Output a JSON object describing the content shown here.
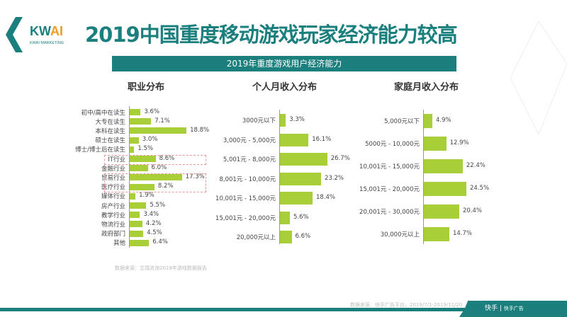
{
  "header": {
    "logo_text": "KWAI",
    "logo_sub": "KWAI MARKETING",
    "title": "2019中国重度移动游戏玩家经济能力较高",
    "banner": "2019年重度游戏用户经济能力"
  },
  "colors": {
    "teal": "#1a7f7d",
    "bar": "#a9cf38",
    "highlight": "#e89a9a",
    "logo_accent": "#f29c1f"
  },
  "chart_data": [
    {
      "type": "bar",
      "orientation": "horizontal",
      "title": "职业分布",
      "categories": [
        "初中/高中在读生",
        "大专在读生",
        "本科在读生",
        "硕士在读生",
        "博士/博士后在读生",
        "IT行业",
        "金融行业",
        "贸易行业",
        "医疗行业",
        "媒体行业",
        "房产行业",
        "教学行业",
        "物流行业",
        "政府部门",
        "其他"
      ],
      "values": [
        3.6,
        7.1,
        18.8,
        3.0,
        1.5,
        8.6,
        6.0,
        17.3,
        8.2,
        1.9,
        5.5,
        3.4,
        4.2,
        4.5,
        6.4
      ],
      "labels": [
        "3.6%",
        "7.1%",
        "18.8%",
        "3.0%",
        "1.5%",
        "8.6%",
        "6.0%",
        "17.3%",
        "8.2%",
        "1.9%",
        "5.5%",
        "3.4%",
        "4.2%",
        "4.5%",
        "6.4%"
      ],
      "unit": "%",
      "highlighted": [
        "IT行业",
        "贸易行业",
        "医疗行业"
      ]
    },
    {
      "type": "bar",
      "orientation": "horizontal",
      "title": "个人月收入分布",
      "categories": [
        "3000元以下",
        "3,000元 - 5,000元",
        "5,001元 - 8,000元",
        "8,001元 - 10,000元",
        "10,001元 - 15,000元",
        "15,001元 - 20,000元",
        "20,000元以上"
      ],
      "values": [
        3.3,
        16.1,
        26.7,
        23.2,
        18.4,
        5.6,
        6.6
      ],
      "labels": [
        "3.3%",
        "16.1%",
        "26.7%",
        "23.2%",
        "18.4%",
        "5.6%",
        "6.6%"
      ],
      "unit": "%"
    },
    {
      "type": "bar",
      "orientation": "horizontal",
      "title": "家庭月收入分布",
      "categories": [
        "5,000元以下",
        "5000元 - 10,000元",
        "10,001元 - 15,000元",
        "15,001元 - 20,000元",
        "20,001元 - 30,000元",
        "30,000元以上"
      ],
      "values": [
        4.9,
        12.9,
        22.4,
        24.5,
        20.4,
        14.7
      ],
      "labels": [
        "4.9%",
        "12.9%",
        "22.4%",
        "24.5%",
        "20.4%",
        "14.7%"
      ],
      "unit": "%"
    }
  ],
  "source_left": "数据来源：艾瑞咨询2019年游戏数据报告",
  "source_right": "数据来源：快手广告平台，2019/7/1-2019/11/20",
  "footer": {
    "brand": "快手",
    "brand2": "快手广告"
  }
}
